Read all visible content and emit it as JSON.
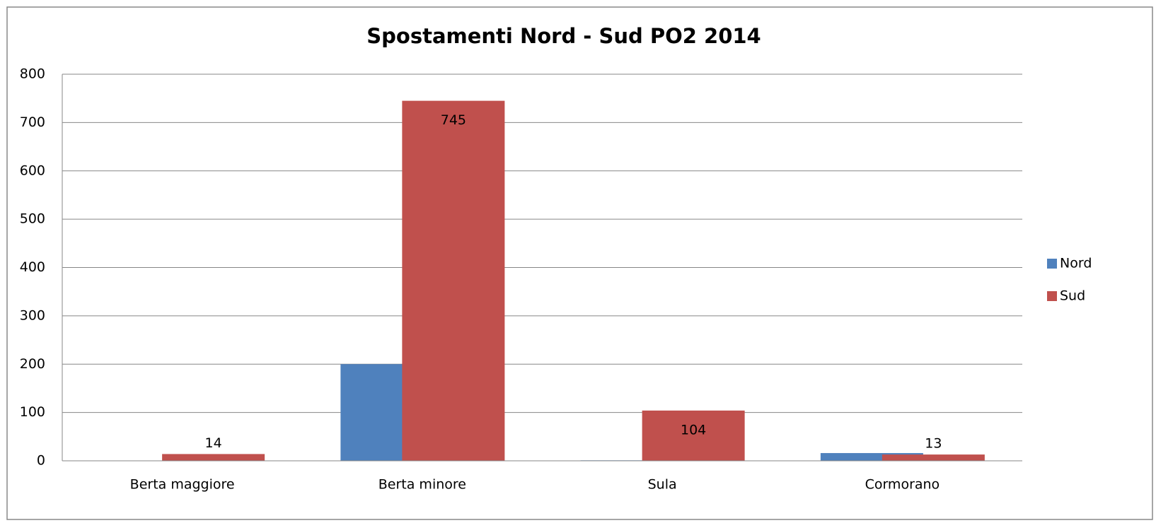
{
  "chart_data": {
    "type": "bar",
    "title": "Spostamenti Nord - Sud PO2 2014",
    "categories": [
      "Berta maggiore",
      "Berta minore",
      "Sula",
      "Cormorano"
    ],
    "series": [
      {
        "name": "Nord",
        "color": "#4f81bd",
        "values": [
          0,
          200,
          1,
          16
        ],
        "show_labels": false
      },
      {
        "name": "Sud",
        "color": "#c0504d",
        "values": [
          14,
          745,
          104,
          13
        ],
        "show_labels": true
      }
    ],
    "ylim": [
      0,
      800
    ],
    "yticks": [
      0,
      100,
      200,
      300,
      400,
      500,
      600,
      700,
      800
    ],
    "grid": true,
    "legend": "right"
  }
}
